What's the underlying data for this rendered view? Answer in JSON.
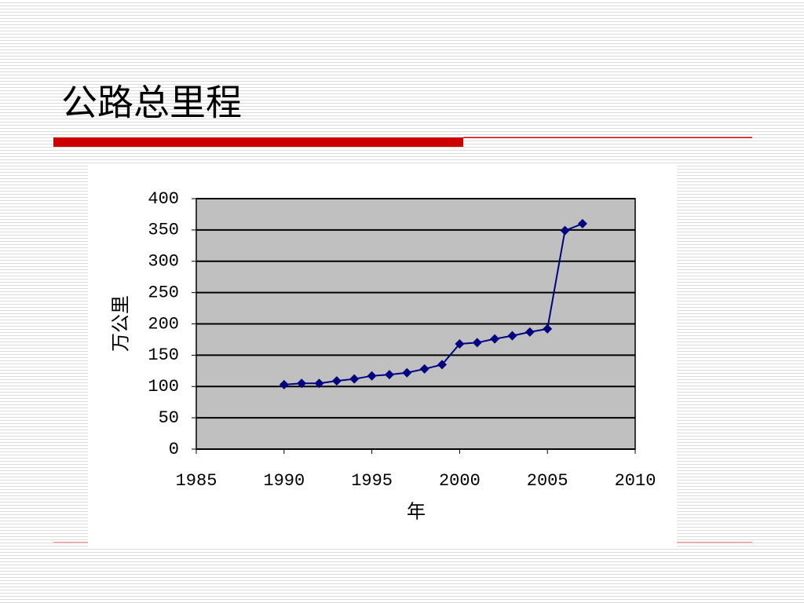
{
  "chart_data": {
    "type": "line",
    "title": "公路总里程",
    "x": [
      1990,
      1991,
      1992,
      1993,
      1994,
      1995,
      1996,
      1997,
      1998,
      1999,
      2000,
      2001,
      2002,
      2003,
      2004,
      2005,
      2006,
      2007
    ],
    "series": [
      {
        "name": "公路总里程",
        "color": "#000080",
        "values": [
          103,
          105,
          105,
          109,
          112,
          117,
          119,
          122,
          128,
          135,
          168,
          170,
          176,
          181,
          187,
          192,
          349,
          360
        ]
      }
    ],
    "xlim": [
      1985,
      2010
    ],
    "xticks": [
      1985,
      1990,
      1995,
      2000,
      2005,
      2010
    ],
    "ylim": [
      0,
      400
    ],
    "yticks": [
      0,
      50,
      100,
      150,
      200,
      250,
      300,
      350,
      400
    ],
    "x_label": "年",
    "y_label": "万公里",
    "grid": true,
    "plot_background": "#c0c0c0"
  }
}
